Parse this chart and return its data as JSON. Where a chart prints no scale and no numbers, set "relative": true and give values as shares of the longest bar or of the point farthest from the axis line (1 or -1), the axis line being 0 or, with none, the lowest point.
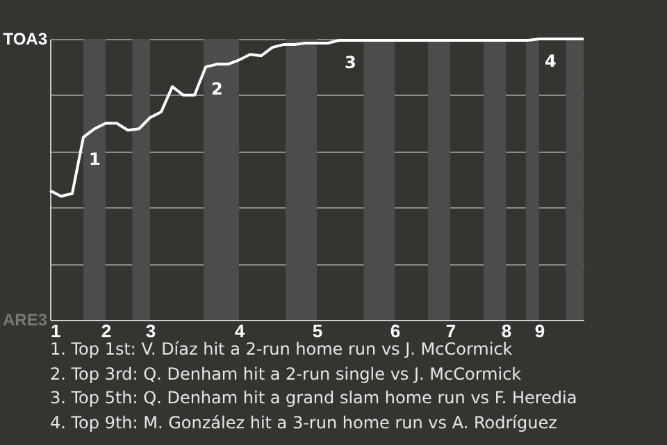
{
  "chart_data": {
    "type": "line",
    "relative": true,
    "categories": [
      "1",
      null,
      null,
      null,
      null,
      "2",
      null,
      null,
      null,
      "3",
      null,
      null,
      null,
      null,
      null,
      null,
      null,
      "4",
      null,
      null,
      null,
      null,
      null,
      null,
      "5",
      null,
      null,
      null,
      null,
      null,
      null,
      "6",
      null,
      null,
      null,
      null,
      "7",
      null,
      null,
      null,
      null,
      "8",
      null,
      null,
      "9",
      null,
      null,
      null,
      null
    ],
    "series": [
      {
        "color": "#ffffff",
        "values": [
          0.46,
          0.44,
          0.45,
          0.65,
          0.68,
          0.7,
          0.7,
          0.675,
          0.68,
          0.72,
          0.74,
          0.83,
          0.8,
          0.8,
          0.9,
          0.91,
          0.91,
          0.925,
          0.945,
          0.94,
          0.97,
          0.98,
          0.98,
          0.985,
          0.985,
          0.985,
          0.995,
          0.995,
          0.995,
          0.995,
          0.995,
          0.995,
          0.995,
          0.995,
          0.995,
          0.995,
          0.995,
          0.995,
          0.995,
          0.995,
          0.995,
          0.995,
          0.995,
          0.995,
          1,
          1,
          1,
          1,
          1
        ]
      }
    ],
    "grid": "y",
    "annotations": [
      "TOA3",
      "ARE3",
      {
        "text": "1",
        "y": 0.65
      },
      {
        "text": "2",
        "y": 0.9
      },
      {
        "text": "3",
        "y": 0.995
      },
      {
        "text": "4",
        "y": 1
      },
      "1. Top 1st: V. Díaz hit a 2-run home run vs J. McCormick",
      "2. Top 3rd: Q. Denham hit a 2-run single vs J. McCormick",
      "3. Top 5th: Q. Denham hit a grand slam home run vs F. Heredia",
      "4. Top 9th: M. González hit a 3-run home run vs A. Rodríguez"
    ]
  }
}
